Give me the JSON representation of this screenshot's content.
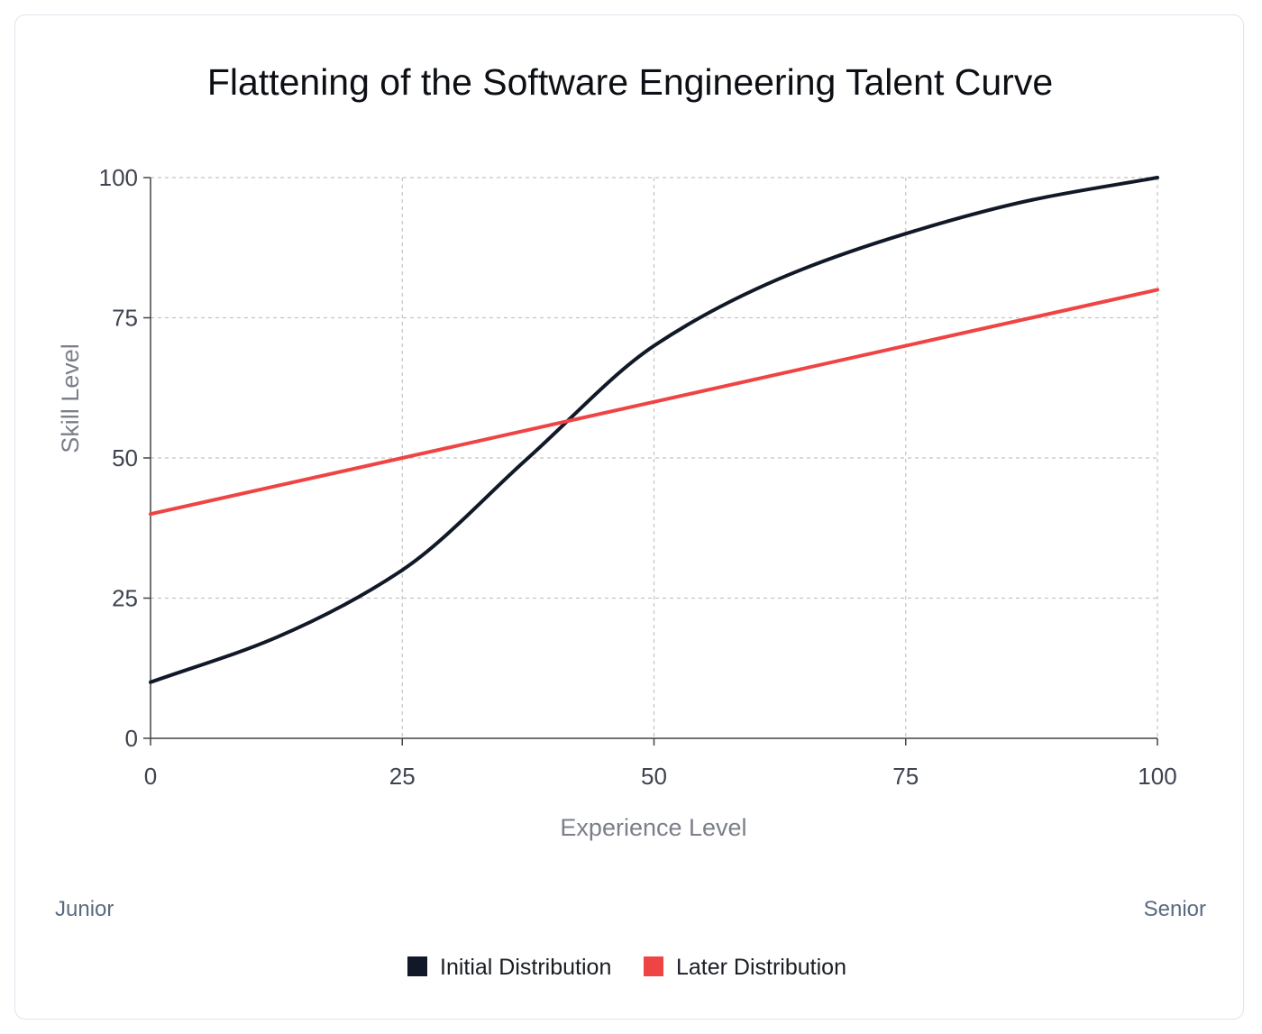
{
  "chart_data": {
    "type": "line",
    "title": "Flattening of the Software Engineering Talent Curve",
    "xlabel": "Experience Level",
    "ylabel": "Skill Level",
    "xlim": [
      0,
      100
    ],
    "ylim": [
      0,
      100
    ],
    "x_ticks": [
      0,
      25,
      50,
      75,
      100
    ],
    "y_ticks": [
      0,
      25,
      50,
      75,
      100
    ],
    "x_tick_labels": [
      "0",
      "25",
      "50",
      "75",
      "100"
    ],
    "y_tick_labels": [
      "0",
      "25",
      "50",
      "75",
      "100"
    ],
    "grid": true,
    "legend_position": "bottom-center",
    "series": [
      {
        "name": "Initial Distribution",
        "color": "#111827",
        "x": [
          0,
          12.5,
          25,
          37.5,
          50,
          62.5,
          75,
          87.5,
          100
        ],
        "y": [
          10,
          18,
          30,
          50,
          70,
          82,
          90,
          96,
          100
        ]
      },
      {
        "name": "Later Distribution",
        "color": "#ef4444",
        "x": [
          0,
          25,
          50,
          75,
          100
        ],
        "y": [
          40,
          50,
          60,
          70,
          80
        ]
      }
    ],
    "annotations": {
      "left": "Junior",
      "right": "Senior"
    }
  }
}
